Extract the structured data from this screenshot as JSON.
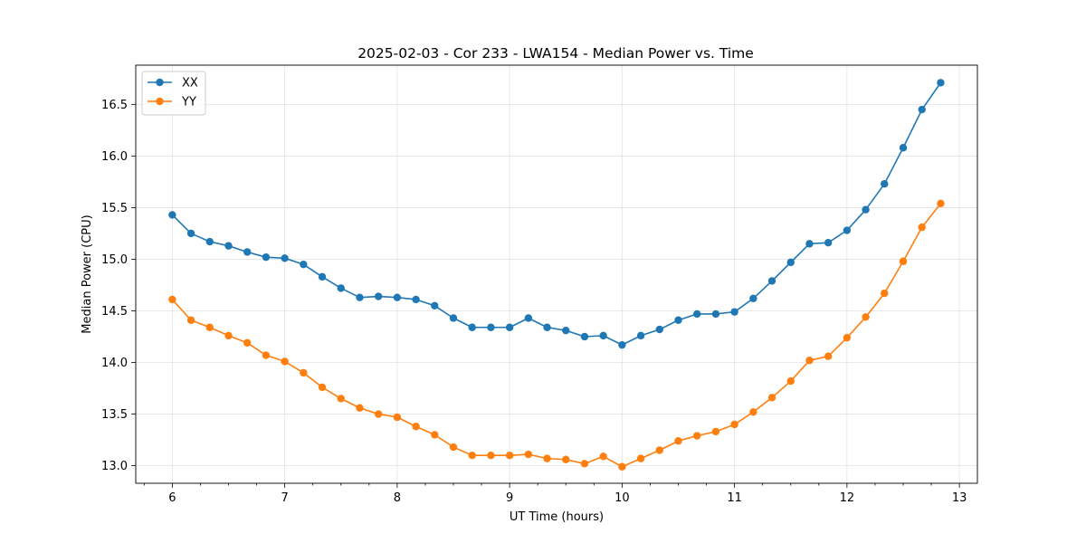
{
  "chart_data": {
    "type": "line",
    "title": "2025-02-03 - Cor 233 - LWA154 - Median Power vs. Time",
    "xlabel": "UT Time (hours)",
    "ylabel": "Median Power (CPU)",
    "xlim": [
      5.675,
      13.16
    ],
    "ylim": [
      12.83,
      16.88
    ],
    "xticks": [
      6,
      7,
      8,
      9,
      10,
      11,
      12,
      13
    ],
    "yticks": [
      13.0,
      13.5,
      14.0,
      14.5,
      15.0,
      15.5,
      16.0,
      16.5
    ],
    "ytick_labels": [
      "13.0",
      "13.5",
      "14.0",
      "14.5",
      "15.0",
      "15.5",
      "16.0",
      "16.5"
    ],
    "x_minor_step": 0.25,
    "grid": true,
    "legend_position": "top-left",
    "x": [
      6.0,
      6.1667,
      6.3333,
      6.5,
      6.6667,
      6.8333,
      7.0,
      7.1667,
      7.3333,
      7.5,
      7.6667,
      7.8333,
      8.0,
      8.1667,
      8.3333,
      8.5,
      8.6667,
      8.8333,
      9.0,
      9.1667,
      9.3333,
      9.5,
      9.6667,
      9.8333,
      10.0,
      10.1667,
      10.3333,
      10.5,
      10.6667,
      10.8333,
      11.0,
      11.1667,
      11.3333,
      11.5,
      11.6667,
      11.8333,
      12.0,
      12.1667,
      12.3333,
      12.5,
      12.6667,
      12.8333
    ],
    "series": [
      {
        "name": "XX",
        "color": "#1f77b4",
        "values": [
          15.43,
          15.25,
          15.17,
          15.13,
          15.07,
          15.02,
          15.01,
          14.95,
          14.83,
          14.72,
          14.63,
          14.64,
          14.63,
          14.61,
          14.55,
          14.43,
          14.34,
          14.34,
          14.34,
          14.43,
          14.34,
          14.31,
          14.25,
          14.26,
          14.17,
          14.26,
          14.32,
          14.41,
          14.47,
          14.47,
          14.49,
          14.62,
          14.79,
          14.97,
          15.15,
          15.16,
          15.28,
          15.48,
          15.73,
          16.08,
          16.45,
          16.71
        ]
      },
      {
        "name": "YY",
        "color": "#ff7f0e",
        "values": [
          14.61,
          14.41,
          14.34,
          14.26,
          14.19,
          14.07,
          14.01,
          13.9,
          13.76,
          13.65,
          13.56,
          13.5,
          13.47,
          13.38,
          13.3,
          13.18,
          13.1,
          13.1,
          13.1,
          13.11,
          13.07,
          13.06,
          13.02,
          13.09,
          12.99,
          13.07,
          13.15,
          13.24,
          13.29,
          13.33,
          13.4,
          13.52,
          13.66,
          13.82,
          14.02,
          14.06,
          14.24,
          14.44,
          14.67,
          14.98,
          15.31,
          15.54
        ]
      }
    ]
  }
}
